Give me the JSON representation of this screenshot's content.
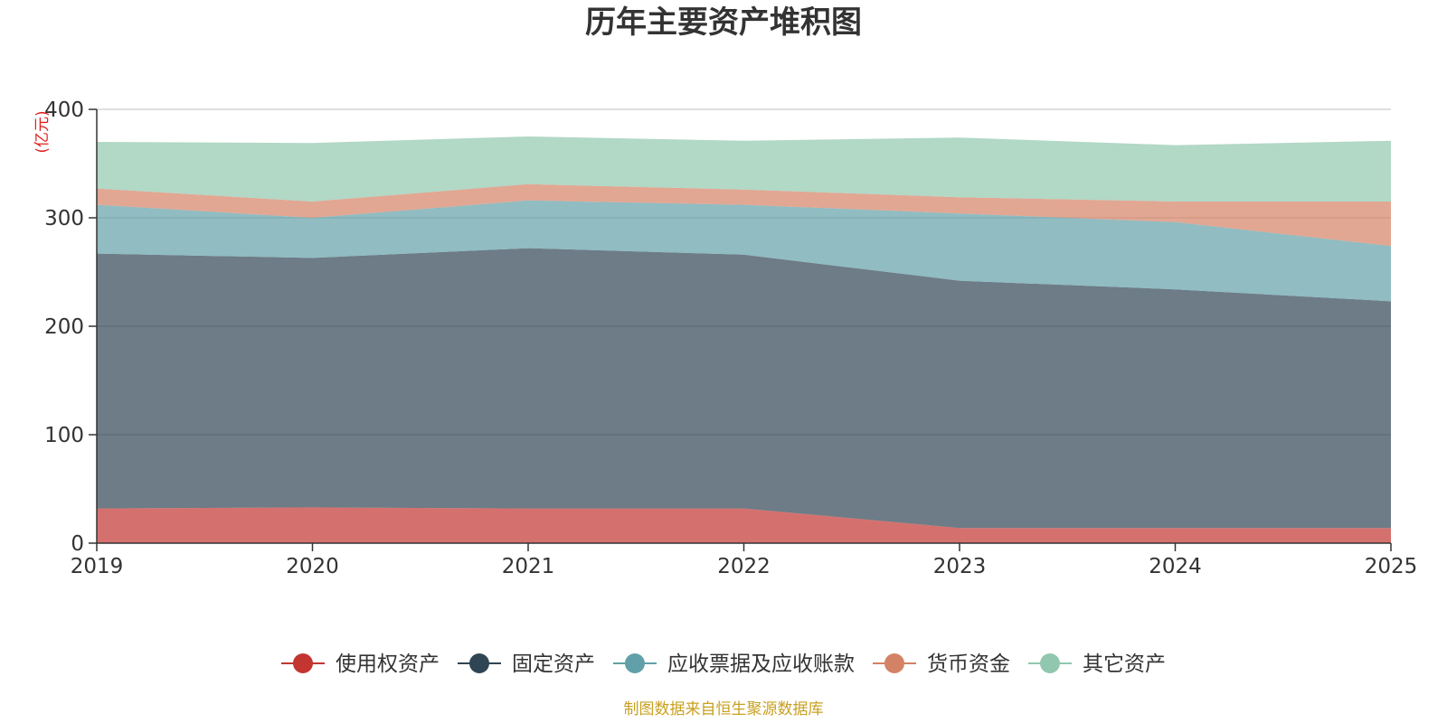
{
  "chart_data": {
    "type": "area",
    "stacked": true,
    "title": "历年主要资产堆积图",
    "unit": "(亿元)",
    "categories": [
      "2019",
      "2020",
      "2021",
      "2022",
      "2023",
      "2024",
      "2025"
    ],
    "y_ticks": [
      0,
      100,
      200,
      300,
      400
    ],
    "ylim": [
      0,
      400
    ],
    "grid": true,
    "legend_position": "bottom",
    "series": [
      {
        "name": "使用权资产",
        "color": "#c23531",
        "values": [
          32,
          33,
          32,
          32,
          14,
          14,
          14
        ]
      },
      {
        "name": "固定资产",
        "color": "#2f4554",
        "values": [
          235,
          230,
          240,
          234,
          228,
          220,
          209
        ]
      },
      {
        "name": "应收票据及应收账款",
        "color": "#61a0a8",
        "values": [
          45,
          37,
          44,
          46,
          62,
          62,
          51
        ]
      },
      {
        "name": "货币资金",
        "color": "#d48265",
        "values": [
          15,
          15,
          15,
          14,
          15,
          19,
          41
        ]
      },
      {
        "name": "其它资产",
        "color": "#91c7ae",
        "values": [
          43,
          54,
          44,
          45,
          55,
          52,
          56
        ]
      }
    ],
    "source": "制图数据来自恒生聚源数据库"
  }
}
